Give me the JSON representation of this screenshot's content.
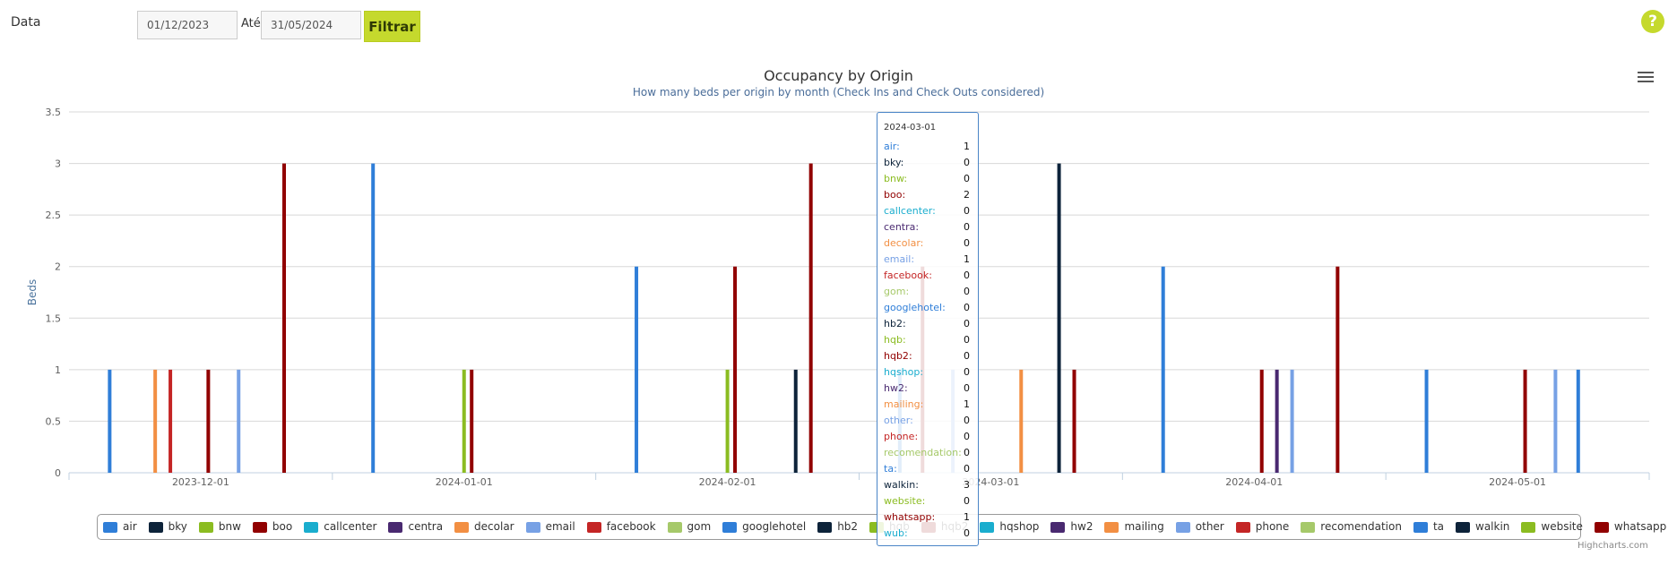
{
  "filter": {
    "label": "Data",
    "start_date": "01/12/2023",
    "until_label": "Até",
    "end_date": "31/05/2024",
    "button_label": "Filtrar"
  },
  "help": {
    "label": "?"
  },
  "credits": "Highcharts.com",
  "chart_data": {
    "type": "bar",
    "title": "Occupancy by Origin",
    "subtitle": "How many beds per origin by month (Check Ins and Check Outs considered)",
    "xlabel": "",
    "ylabel": "Beds",
    "ylim": [
      0,
      3.5
    ],
    "yticks": [
      0,
      0.5,
      1,
      1.5,
      2,
      2.5,
      3,
      3.5
    ],
    "ytick_labels": [
      "0",
      "0.5",
      "1",
      "1.5",
      "2",
      "2.5",
      "3",
      "3.5"
    ],
    "grid": true,
    "legend_position": "bottom",
    "categories": [
      "2023-12-01",
      "2024-01-01",
      "2024-02-01",
      "2024-03-01",
      "2024-04-01",
      "2024-05-01"
    ],
    "series": [
      {
        "name": "air",
        "color": "#2f7ed8",
        "values": [
          1,
          3,
          2,
          1,
          2,
          1
        ]
      },
      {
        "name": "bky",
        "color": "#0d233a",
        "values": [
          0,
          0,
          0,
          0,
          0,
          0
        ]
      },
      {
        "name": "bnw",
        "color": "#8bbc21",
        "values": [
          0,
          0,
          0,
          0,
          0,
          0
        ]
      },
      {
        "name": "boo",
        "color": "#910000",
        "values": [
          0,
          0,
          0,
          2,
          0,
          0
        ]
      },
      {
        "name": "callcenter",
        "color": "#1aadce",
        "values": [
          0,
          0,
          0,
          0,
          0,
          0
        ]
      },
      {
        "name": "centra",
        "color": "#492970",
        "values": [
          0,
          0,
          0,
          0,
          0,
          0
        ]
      },
      {
        "name": "decolar",
        "color": "#f28f43",
        "values": [
          1,
          0,
          0,
          0,
          0,
          0
        ]
      },
      {
        "name": "email",
        "color": "#77a1e5",
        "values": [
          0,
          0,
          0,
          1,
          0,
          0
        ]
      },
      {
        "name": "facebook",
        "color": "#c42525",
        "values": [
          1,
          0,
          0,
          0,
          0,
          0
        ]
      },
      {
        "name": "gom",
        "color": "#a6c96a",
        "values": [
          0,
          0,
          0,
          0,
          0,
          0
        ]
      },
      {
        "name": "googlehotel",
        "color": "#2f7ed8",
        "values": [
          0,
          0,
          0,
          0,
          0,
          0
        ]
      },
      {
        "name": "hb2",
        "color": "#0d233a",
        "values": [
          0,
          0,
          0,
          0,
          0,
          0
        ]
      },
      {
        "name": "hqb",
        "color": "#8bbc21",
        "values": [
          0,
          1,
          1,
          0,
          0,
          0
        ]
      },
      {
        "name": "hqb2",
        "color": "#910000",
        "values": [
          1,
          1,
          2,
          0,
          1,
          1
        ]
      },
      {
        "name": "hqshop",
        "color": "#1aadce",
        "values": [
          0,
          0,
          0,
          0,
          0,
          0
        ]
      },
      {
        "name": "hw2",
        "color": "#492970",
        "values": [
          0,
          0,
          0,
          0,
          1,
          0
        ]
      },
      {
        "name": "mailing",
        "color": "#f28f43",
        "values": [
          0,
          0,
          0,
          1,
          0,
          0
        ]
      },
      {
        "name": "other",
        "color": "#77a1e5",
        "values": [
          1,
          0,
          0,
          0,
          1,
          1
        ]
      },
      {
        "name": "phone",
        "color": "#c42525",
        "values": [
          0,
          0,
          0,
          0,
          0,
          0
        ]
      },
      {
        "name": "recomendation",
        "color": "#a6c96a",
        "values": [
          0,
          0,
          0,
          0,
          0,
          0
        ]
      },
      {
        "name": "ta",
        "color": "#2f7ed8",
        "values": [
          0,
          0,
          0,
          0,
          0,
          1
        ]
      },
      {
        "name": "walkin",
        "color": "#0d233a",
        "values": [
          0,
          0,
          1,
          3,
          0,
          0
        ]
      },
      {
        "name": "website",
        "color": "#8bbc21",
        "values": [
          0,
          0,
          0,
          0,
          0,
          0
        ]
      },
      {
        "name": "whatsapp",
        "color": "#910000",
        "values": [
          3,
          0,
          3,
          1,
          2,
          0
        ]
      },
      {
        "name": "wub",
        "color": "#1aadce",
        "values": [
          0,
          0,
          0,
          0,
          0,
          0
        ]
      }
    ],
    "tooltip": {
      "date": "2024-03-01",
      "rows": [
        {
          "name": "air",
          "value": "1",
          "color": "#2f7ed8"
        },
        {
          "name": "bky",
          "value": "0",
          "color": "#0d233a"
        },
        {
          "name": "bnw",
          "value": "0",
          "color": "#8bbc21"
        },
        {
          "name": "boo",
          "value": "2",
          "color": "#910000"
        },
        {
          "name": "callcenter",
          "value": "0",
          "color": "#1aadce"
        },
        {
          "name": "centra",
          "value": "0",
          "color": "#492970"
        },
        {
          "name": "decolar",
          "value": "0",
          "color": "#f28f43"
        },
        {
          "name": "email",
          "value": "1",
          "color": "#77a1e5"
        },
        {
          "name": "facebook",
          "value": "0",
          "color": "#c42525"
        },
        {
          "name": "gom",
          "value": "0",
          "color": "#a6c96a"
        },
        {
          "name": "googlehotel",
          "value": "0",
          "color": "#2f7ed8"
        },
        {
          "name": "hb2",
          "value": "0",
          "color": "#0d233a"
        },
        {
          "name": "hqb",
          "value": "0",
          "color": "#8bbc21"
        },
        {
          "name": "hqb2",
          "value": "0",
          "color": "#910000"
        },
        {
          "name": "hqshop",
          "value": "0",
          "color": "#1aadce"
        },
        {
          "name": "hw2",
          "value": "0",
          "color": "#492970"
        },
        {
          "name": "mailing",
          "value": "1",
          "color": "#f28f43"
        },
        {
          "name": "other",
          "value": "0",
          "color": "#77a1e5"
        },
        {
          "name": "phone",
          "value": "0",
          "color": "#c42525"
        },
        {
          "name": "recomendation",
          "value": "0",
          "color": "#a6c96a"
        },
        {
          "name": "ta",
          "value": "0",
          "color": "#2f7ed8"
        },
        {
          "name": "walkin",
          "value": "3",
          "color": "#0d233a"
        },
        {
          "name": "website",
          "value": "0",
          "color": "#8bbc21"
        },
        {
          "name": "whatsapp",
          "value": "1",
          "color": "#910000"
        },
        {
          "name": "wub",
          "value": "0",
          "color": "#1aadce"
        }
      ]
    }
  }
}
